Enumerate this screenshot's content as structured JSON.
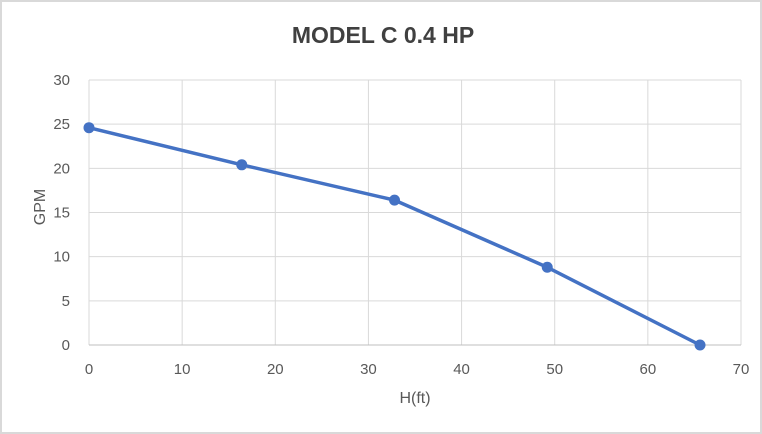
{
  "chart_data": {
    "type": "line",
    "title": "MODEL C 0.4 HP",
    "xlabel": "H(ft)",
    "ylabel": "GPM",
    "x": [
      0,
      16.4,
      32.8,
      49.2,
      65.6
    ],
    "y": [
      24.6,
      20.4,
      16.4,
      8.8,
      0
    ],
    "xlim": [
      0,
      70
    ],
    "ylim": [
      0,
      30
    ],
    "xticks": [
      0,
      10,
      20,
      30,
      40,
      50,
      60,
      70
    ],
    "yticks": [
      0,
      5,
      10,
      15,
      20,
      25,
      30
    ],
    "grid": true,
    "legend": false,
    "marker": "circle",
    "colors": {
      "line": "#4472C4",
      "marker": "#4472C4",
      "gridline": "#D9D9D9",
      "axis_line": "#BFBFBF",
      "tick_label": "#595959",
      "axis_title": "#595959",
      "title": "#404040",
      "background": "#FFFFFF",
      "frame_border": "#D9D9D9"
    }
  }
}
